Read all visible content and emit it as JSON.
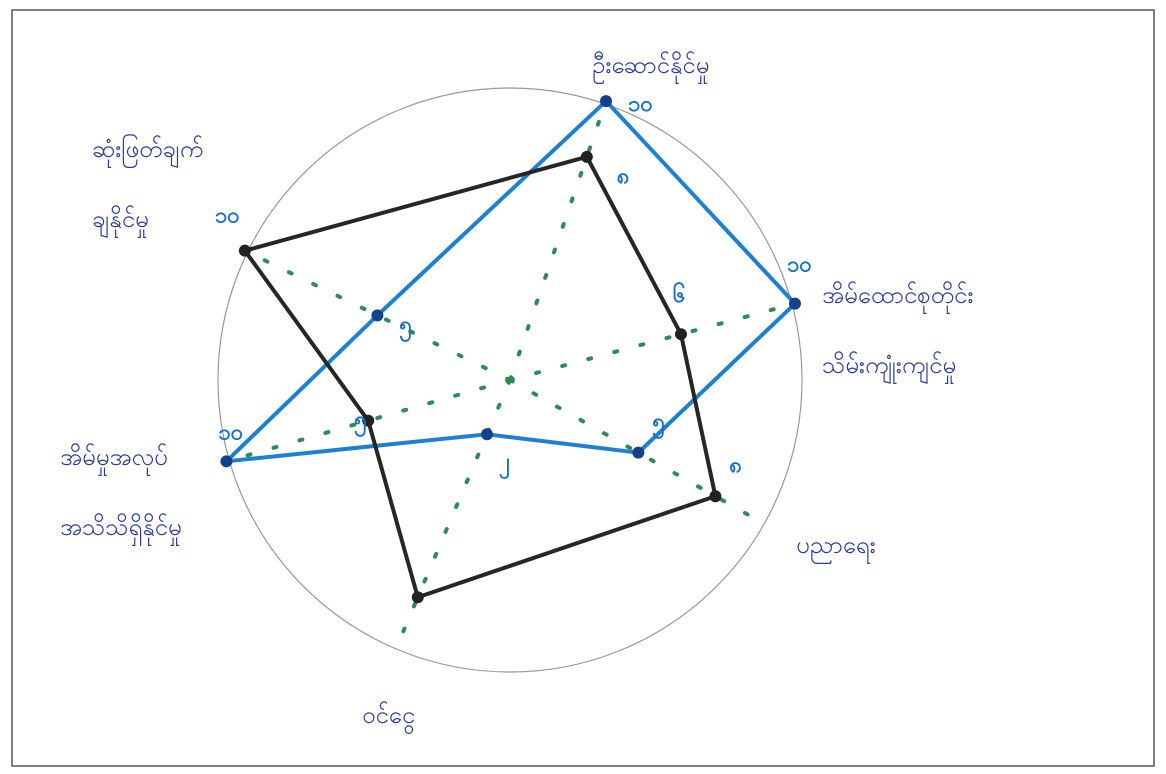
{
  "chart_data": {
    "type": "radar",
    "categories": [
      [
        "ဦးဆောင်နိုင်မှု"
      ],
      [
        "အိမ်ထောင်စုတိုင်း",
        "သိမ်းကျုံးကျင်မှု"
      ],
      [
        "ပညာရေး"
      ],
      [
        "ဝင်ငွေ"
      ],
      [
        "အိမ်မှုအလုပ်",
        "အသိသိရှိနိုင်မှု"
      ],
      [
        "ဆုံးဖြတ်ချက်",
        "ချနိုင်မှု"
      ]
    ],
    "rlim": [
      0,
      10
    ],
    "series": [
      {
        "color": "#1f7fd0",
        "values": [
          10,
          10,
          5,
          2,
          10,
          5
        ],
        "value_labels": [
          "၁၀",
          "၁၀",
          "၅",
          "၂",
          "၁၀",
          "၅"
        ]
      },
      {
        "color": "#262626",
        "values": [
          8,
          6,
          8,
          8,
          5,
          10
        ],
        "value_labels": [
          "၈",
          "၆",
          "၈",
          null,
          "၅",
          "၁၀"
        ]
      }
    ]
  }
}
